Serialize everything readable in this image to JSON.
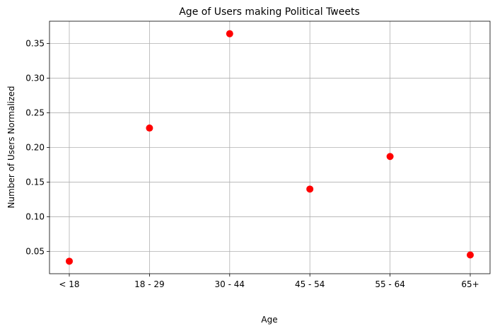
{
  "chart_data": {
    "type": "scatter",
    "title": "Age of Users making Political Tweets",
    "xlabel": "Age",
    "ylabel": "Number of Users Normalized",
    "categories": [
      "< 18",
      "18 - 29",
      "30 - 44",
      "45 - 54",
      "55 - 64",
      "65+"
    ],
    "values": [
      0.036,
      0.228,
      0.364,
      0.14,
      0.187,
      0.045
    ],
    "yticks": [
      0.05,
      0.1,
      0.15,
      0.2,
      0.25,
      0.3,
      0.35
    ],
    "ytick_labels": [
      "0.05",
      "0.10",
      "0.15",
      "0.20",
      "0.25",
      "0.30",
      "0.35"
    ],
    "ylim": [
      0.018,
      0.382
    ],
    "grid": true,
    "marker_color": "#ff0000"
  }
}
